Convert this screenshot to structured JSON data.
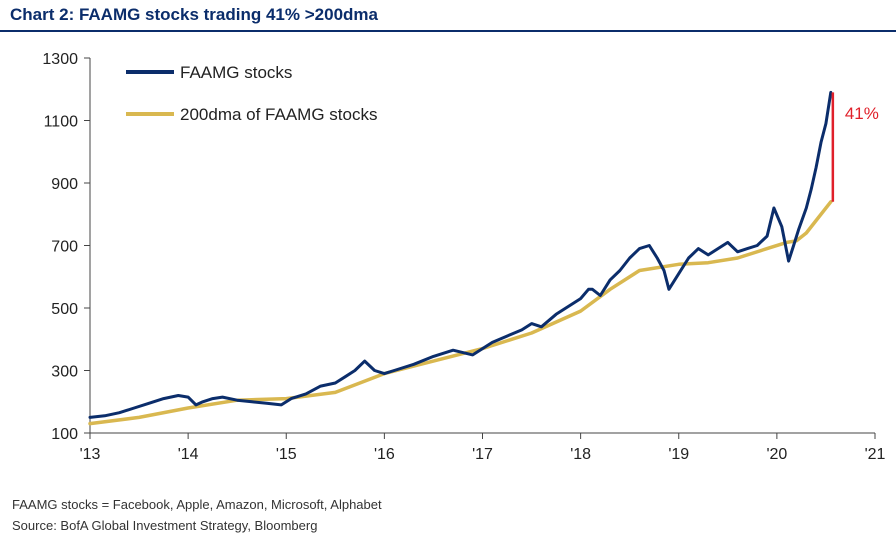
{
  "chart_data": {
    "type": "line",
    "title": "Chart 2: FAAMG stocks trading 41% >200dma",
    "xlabel": "",
    "ylabel": "",
    "x_ticks": [
      "'13",
      "'14",
      "'15",
      "'16",
      "'17",
      "'18",
      "'19",
      "'20",
      "'21"
    ],
    "x_range": [
      2013.0,
      2021.0
    ],
    "y_ticks": [
      100,
      300,
      500,
      700,
      900,
      1100,
      1300
    ],
    "ylim": [
      100,
      1300
    ],
    "grid": false,
    "legend_position": "top-left",
    "series": [
      {
        "name": "FAAMG stocks",
        "color": "#0b2d6b",
        "x": [
          2013.0,
          2013.15,
          2013.3,
          2013.45,
          2013.6,
          2013.75,
          2013.9,
          2014.0,
          2014.08,
          2014.15,
          2014.25,
          2014.35,
          2014.5,
          2014.65,
          2014.8,
          2014.95,
          2015.05,
          2015.2,
          2015.35,
          2015.5,
          2015.6,
          2015.7,
          2015.8,
          2015.9,
          2016.0,
          2016.1,
          2016.3,
          2016.5,
          2016.7,
          2016.9,
          2017.0,
          2017.1,
          2017.25,
          2017.4,
          2017.5,
          2017.6,
          2017.75,
          2017.85,
          2018.0,
          2018.08,
          2018.12,
          2018.2,
          2018.3,
          2018.4,
          2018.5,
          2018.6,
          2018.7,
          2018.78,
          2018.85,
          2018.9,
          2019.0,
          2019.1,
          2019.2,
          2019.3,
          2019.4,
          2019.5,
          2019.6,
          2019.7,
          2019.8,
          2019.9,
          2019.97,
          2020.05,
          2020.12,
          2020.17,
          2020.22,
          2020.3,
          2020.35,
          2020.4,
          2020.45,
          2020.5,
          2020.55
        ],
        "values": [
          150,
          155,
          165,
          180,
          195,
          210,
          220,
          215,
          190,
          200,
          210,
          215,
          205,
          200,
          195,
          190,
          210,
          225,
          250,
          260,
          280,
          300,
          330,
          300,
          290,
          300,
          320,
          345,
          365,
          350,
          370,
          390,
          410,
          430,
          450,
          440,
          480,
          500,
          530,
          560,
          560,
          540,
          590,
          620,
          660,
          690,
          700,
          660,
          620,
          560,
          610,
          660,
          690,
          670,
          690,
          710,
          680,
          690,
          700,
          730,
          820,
          760,
          650,
          700,
          750,
          820,
          880,
          950,
          1030,
          1090,
          1190
        ]
      },
      {
        "name": "200dma of FAAMG stocks",
        "color": "#d9b850",
        "x": [
          2013.0,
          2013.5,
          2014.0,
          2014.5,
          2015.0,
          2015.5,
          2016.0,
          2016.5,
          2017.0,
          2017.5,
          2018.0,
          2018.3,
          2018.6,
          2019.0,
          2019.3,
          2019.6,
          2019.9,
          2020.1,
          2020.2,
          2020.3,
          2020.4,
          2020.55
        ],
        "values": [
          130,
          150,
          180,
          205,
          210,
          230,
          290,
          330,
          370,
          420,
          490,
          560,
          620,
          640,
          645,
          660,
          690,
          710,
          715,
          740,
          780,
          840
        ]
      }
    ],
    "annotations": [
      {
        "text": "41%",
        "color": "#e0202a",
        "x": 2020.55,
        "y_from": 840,
        "y_to": 1190
      }
    ]
  },
  "footnotes": [
    "FAAMG stocks = Facebook, Apple, Amazon, Microsoft, Alphabet",
    "Source: BofA Global Investment Strategy, Bloomberg"
  ]
}
